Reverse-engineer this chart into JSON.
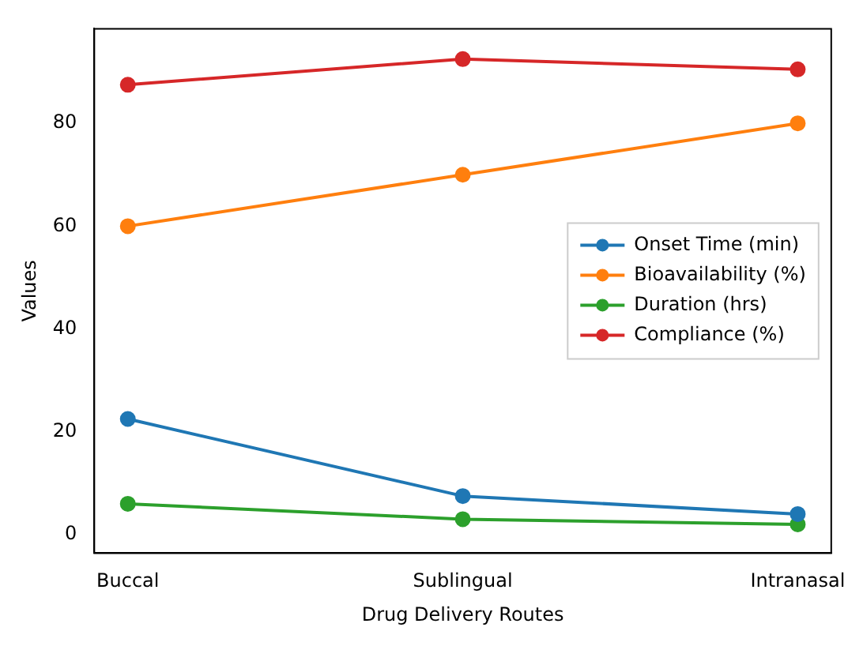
{
  "chart_data": {
    "type": "line",
    "xlabel": "Drug Delivery Routes",
    "ylabel": "Values",
    "categories": [
      "Buccal",
      "Sublingual",
      "Intranasal"
    ],
    "series": [
      {
        "name": "Onset Time (min)",
        "color": "#1f77b4",
        "values": [
          22.5,
          7.5,
          4
        ]
      },
      {
        "name": "Bioavailability (%)",
        "color": "#ff7f0e",
        "values": [
          60,
          70,
          80
        ]
      },
      {
        "name": "Duration (hrs)",
        "color": "#2ca02c",
        "values": [
          6,
          3,
          2
        ]
      },
      {
        "name": "Compliance (%)",
        "color": "#d62728",
        "values": [
          87.5,
          92.5,
          90.5
        ]
      }
    ],
    "ylim": [
      -3.6,
      98.4
    ],
    "yticks": [
      0,
      20,
      40,
      60,
      80
    ],
    "grid": false,
    "legend": "right",
    "marker": "circle",
    "line_style": "solid"
  }
}
